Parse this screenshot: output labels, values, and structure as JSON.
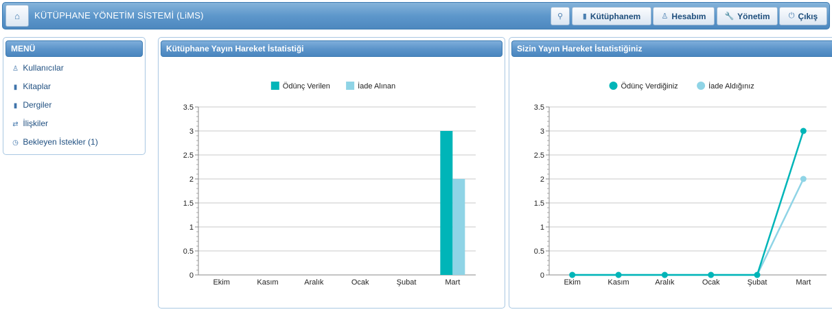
{
  "header": {
    "title": "KÜTÜPHANE YÖNETİM SİSTEMİ (LiMS)",
    "home_icon": "home-icon",
    "buttons": [
      {
        "label": "",
        "icon": "search-icon"
      },
      {
        "label": "Kütüphanem",
        "icon": "book-icon"
      },
      {
        "label": "Hesabım",
        "icon": "user-icon"
      },
      {
        "label": "Yönetim",
        "icon": "wrench-icon"
      },
      {
        "label": "Çıkış",
        "icon": "power-icon"
      }
    ]
  },
  "menu": {
    "title": "MENÜ",
    "items": [
      {
        "label": "Kullanıcılar",
        "icon": "user-icon"
      },
      {
        "label": "Kitaplar",
        "icon": "book-icon"
      },
      {
        "label": "Dergiler",
        "icon": "book-icon"
      },
      {
        "label": "İlişkiler",
        "icon": "transfer-icon"
      },
      {
        "label": "Bekleyen İstekler (1)",
        "icon": "clock-icon"
      }
    ]
  },
  "panels": {
    "library_title": "Kütüphane Yayın Hareket İstatistiği",
    "user_title": "Sizin Yayın Hareket İstatistiğiniz"
  },
  "chart_data": [
    {
      "type": "bar",
      "title": "",
      "categories": [
        "Ekim",
        "Kasım",
        "Aralık",
        "Ocak",
        "Şubat",
        "Mart"
      ],
      "series": [
        {
          "name": "Ödünç Verilen",
          "values": [
            0,
            0,
            0,
            0,
            0,
            3
          ],
          "color": "#00b5b8"
        },
        {
          "name": "İade Alınan",
          "values": [
            0,
            0,
            0,
            0,
            0,
            2
          ],
          "color": "#8fd4e6"
        }
      ],
      "ylim": [
        0,
        3.5
      ],
      "yticks": [
        "0",
        "0.5",
        "1",
        "1.5",
        "2",
        "2.5",
        "3",
        "3.5"
      ],
      "grid": true,
      "legend": "top-center"
    },
    {
      "type": "line",
      "title": "",
      "categories": [
        "Ekim",
        "Kasım",
        "Aralık",
        "Ocak",
        "Şubat",
        "Mart"
      ],
      "series": [
        {
          "name": "Ödünç Verdiğiniz",
          "values": [
            0,
            0,
            0,
            0,
            0,
            3
          ],
          "color": "#00b5b8"
        },
        {
          "name": "İade Aldığınız",
          "values": [
            0,
            0,
            0,
            0,
            0,
            2
          ],
          "color": "#8fd4e6"
        }
      ],
      "ylim": [
        0,
        3.5
      ],
      "yticks": [
        "0",
        "0.5",
        "1",
        "1.5",
        "2",
        "2.5",
        "3",
        "3.5"
      ],
      "grid": true,
      "legend": "top-center"
    }
  ]
}
